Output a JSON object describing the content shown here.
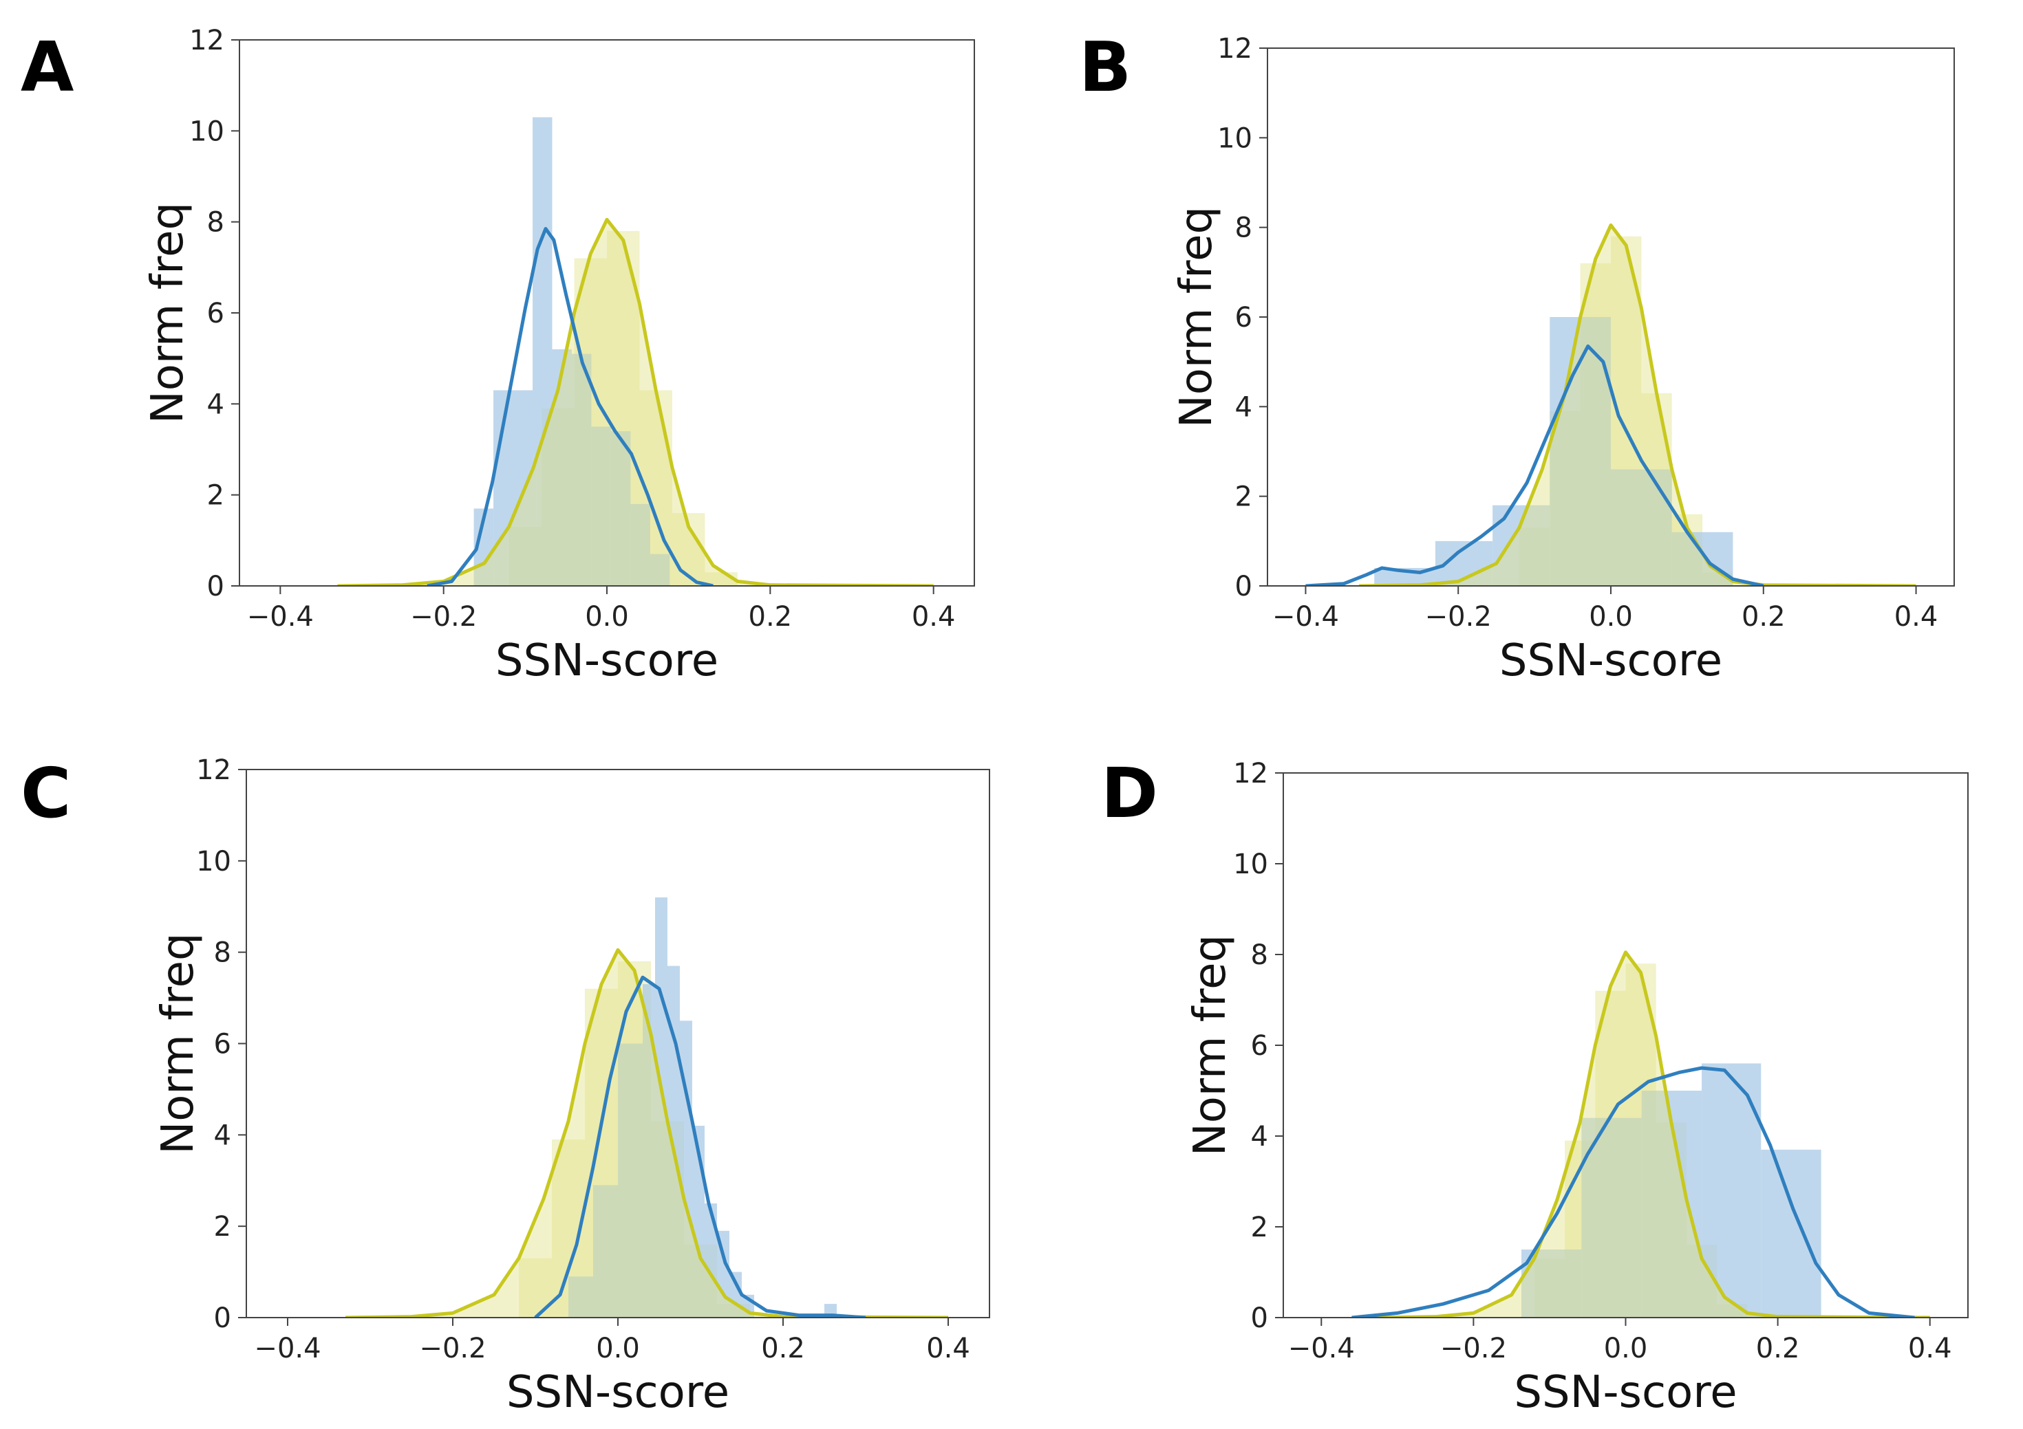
{
  "chart_data": [
    {
      "panel": "A",
      "type": "histogram+kde",
      "xlabel": "SSN-score",
      "ylabel": "Norm freq",
      "xlim": [
        -0.45,
        0.45
      ],
      "ylim": [
        0,
        12
      ],
      "xticks": [
        "−0.4",
        "−0.2",
        "0.0",
        "0.2",
        "0.4"
      ],
      "yticks": [
        "0",
        "2",
        "4",
        "6",
        "8",
        "10",
        "12"
      ],
      "grid": false,
      "colors": {
        "background": "#e3e38a",
        "sample": "#2b7bba"
      },
      "series": [
        {
          "kde": [
            [
              -0.33,
              0
            ],
            [
              -0.25,
              0.02
            ],
            [
              -0.2,
              0.1
            ],
            [
              -0.15,
              0.5
            ],
            [
              -0.12,
              1.3
            ],
            [
              -0.09,
              2.6
            ],
            [
              -0.06,
              4.3
            ],
            [
              -0.04,
              6.0
            ],
            [
              -0.02,
              7.3
            ],
            [
              0.0,
              8.05
            ],
            [
              0.02,
              7.6
            ],
            [
              0.04,
              6.2
            ],
            [
              0.06,
              4.3
            ],
            [
              0.08,
              2.6
            ],
            [
              0.1,
              1.3
            ],
            [
              0.13,
              0.45
            ],
            [
              0.16,
              0.1
            ],
            [
              0.2,
              0.02
            ],
            [
              0.4,
              0
            ]
          ],
          "hist": [
            [
              -0.12,
              -0.08,
              1.3
            ],
            [
              -0.08,
              -0.04,
              3.9
            ],
            [
              -0.04,
              0.0,
              7.2
            ],
            [
              0.0,
              0.04,
              7.8
            ],
            [
              0.04,
              0.08,
              4.3
            ],
            [
              0.08,
              0.12,
              1.6
            ],
            [
              0.12,
              0.16,
              0.3
            ]
          ]
        },
        {
          "kde": [
            [
              -0.22,
              0
            ],
            [
              -0.19,
              0.1
            ],
            [
              -0.16,
              0.8
            ],
            [
              -0.14,
              2.3
            ],
            [
              -0.12,
              4.2
            ],
            [
              -0.1,
              6.1
            ],
            [
              -0.085,
              7.4
            ],
            [
              -0.075,
              7.85
            ],
            [
              -0.065,
              7.6
            ],
            [
              -0.05,
              6.4
            ],
            [
              -0.03,
              4.9
            ],
            [
              -0.01,
              4.0
            ],
            [
              0.01,
              3.4
            ],
            [
              0.03,
              2.9
            ],
            [
              0.05,
              2.0
            ],
            [
              0.07,
              1.0
            ],
            [
              0.09,
              0.35
            ],
            [
              0.11,
              0.08
            ],
            [
              0.13,
              0
            ]
          ],
          "hist": [
            [
              -0.163,
              -0.139,
              1.7
            ],
            [
              -0.139,
              -0.115,
              4.3
            ],
            [
              -0.115,
              -0.091,
              4.3
            ],
            [
              -0.091,
              -0.067,
              10.3
            ],
            [
              -0.067,
              -0.043,
              5.2
            ],
            [
              -0.043,
              -0.019,
              5.1
            ],
            [
              -0.019,
              0.005,
              3.5
            ],
            [
              0.005,
              0.029,
              3.4
            ],
            [
              0.029,
              0.053,
              1.8
            ],
            [
              0.053,
              0.077,
              0.7
            ]
          ]
        }
      ]
    },
    {
      "panel": "B",
      "type": "histogram+kde",
      "xlabel": "SSN-score",
      "ylabel": "Norm freq",
      "xlim": [
        -0.45,
        0.45
      ],
      "ylim": [
        0,
        12
      ],
      "xticks": [
        "−0.4",
        "−0.2",
        "0.0",
        "0.2",
        "0.4"
      ],
      "yticks": [
        "0",
        "2",
        "4",
        "6",
        "8",
        "10",
        "12"
      ],
      "grid": false,
      "colors": {
        "background": "#e3e38a",
        "sample": "#2b7bba"
      },
      "series": [
        {
          "kde": [
            [
              -0.33,
              0
            ],
            [
              -0.25,
              0.02
            ],
            [
              -0.2,
              0.1
            ],
            [
              -0.15,
              0.5
            ],
            [
              -0.12,
              1.3
            ],
            [
              -0.09,
              2.6
            ],
            [
              -0.06,
              4.3
            ],
            [
              -0.04,
              6.0
            ],
            [
              -0.02,
              7.3
            ],
            [
              0.0,
              8.05
            ],
            [
              0.02,
              7.6
            ],
            [
              0.04,
              6.2
            ],
            [
              0.06,
              4.3
            ],
            [
              0.08,
              2.6
            ],
            [
              0.1,
              1.3
            ],
            [
              0.13,
              0.45
            ],
            [
              0.16,
              0.1
            ],
            [
              0.2,
              0.02
            ],
            [
              0.4,
              0
            ]
          ],
          "hist": [
            [
              -0.12,
              -0.08,
              1.3
            ],
            [
              -0.08,
              -0.04,
              3.9
            ],
            [
              -0.04,
              0.0,
              7.2
            ],
            [
              0.0,
              0.04,
              7.8
            ],
            [
              0.04,
              0.08,
              4.3
            ],
            [
              0.08,
              0.12,
              1.6
            ],
            [
              0.12,
              0.16,
              0.3
            ]
          ]
        },
        {
          "kde": [
            [
              -0.4,
              0
            ],
            [
              -0.35,
              0.05
            ],
            [
              -0.32,
              0.25
            ],
            [
              -0.3,
              0.4
            ],
            [
              -0.28,
              0.35
            ],
            [
              -0.25,
              0.3
            ],
            [
              -0.22,
              0.45
            ],
            [
              -0.2,
              0.75
            ],
            [
              -0.17,
              1.1
            ],
            [
              -0.14,
              1.5
            ],
            [
              -0.11,
              2.3
            ],
            [
              -0.08,
              3.5
            ],
            [
              -0.05,
              4.7
            ],
            [
              -0.03,
              5.35
            ],
            [
              -0.01,
              5.0
            ],
            [
              0.01,
              3.8
            ],
            [
              0.04,
              2.8
            ],
            [
              0.07,
              2.0
            ],
            [
              0.1,
              1.2
            ],
            [
              0.13,
              0.5
            ],
            [
              0.16,
              0.15
            ],
            [
              0.2,
              0
            ]
          ],
          "hist": [
            [
              -0.31,
              -0.23,
              0.4
            ],
            [
              -0.23,
              -0.155,
              1.0
            ],
            [
              -0.155,
              -0.08,
              1.8
            ],
            [
              -0.08,
              0.0,
              6.0
            ],
            [
              0.0,
              0.08,
              2.6
            ],
            [
              0.08,
              0.16,
              1.2
            ]
          ]
        }
      ]
    },
    {
      "panel": "C",
      "type": "histogram+kde",
      "xlabel": "SSN-score",
      "ylabel": "Norm freq",
      "xlim": [
        -0.45,
        0.45
      ],
      "ylim": [
        0,
        12
      ],
      "xticks": [
        "−0.4",
        "−0.2",
        "0.0",
        "0.2",
        "0.4"
      ],
      "yticks": [
        "0",
        "2",
        "4",
        "6",
        "8",
        "10",
        "12"
      ],
      "grid": false,
      "colors": {
        "background": "#e3e38a",
        "sample": "#2b7bba"
      },
      "series": [
        {
          "kde": [
            [
              -0.33,
              0
            ],
            [
              -0.25,
              0.02
            ],
            [
              -0.2,
              0.1
            ],
            [
              -0.15,
              0.5
            ],
            [
              -0.12,
              1.3
            ],
            [
              -0.09,
              2.6
            ],
            [
              -0.06,
              4.3
            ],
            [
              -0.04,
              6.0
            ],
            [
              -0.02,
              7.3
            ],
            [
              0.0,
              8.05
            ],
            [
              0.02,
              7.6
            ],
            [
              0.04,
              6.2
            ],
            [
              0.06,
              4.3
            ],
            [
              0.08,
              2.6
            ],
            [
              0.1,
              1.3
            ],
            [
              0.13,
              0.45
            ],
            [
              0.16,
              0.1
            ],
            [
              0.2,
              0.02
            ],
            [
              0.4,
              0
            ]
          ],
          "hist": [
            [
              -0.12,
              -0.08,
              1.3
            ],
            [
              -0.08,
              -0.04,
              3.9
            ],
            [
              -0.04,
              0.0,
              7.2
            ],
            [
              0.0,
              0.04,
              7.8
            ],
            [
              0.04,
              0.08,
              4.3
            ],
            [
              0.08,
              0.12,
              1.6
            ],
            [
              0.12,
              0.16,
              0.3
            ]
          ]
        },
        {
          "kde": [
            [
              -0.1,
              0
            ],
            [
              -0.07,
              0.5
            ],
            [
              -0.05,
              1.6
            ],
            [
              -0.03,
              3.3
            ],
            [
              -0.01,
              5.2
            ],
            [
              0.01,
              6.7
            ],
            [
              0.03,
              7.45
            ],
            [
              0.05,
              7.2
            ],
            [
              0.07,
              6.0
            ],
            [
              0.09,
              4.3
            ],
            [
              0.11,
              2.5
            ],
            [
              0.13,
              1.2
            ],
            [
              0.15,
              0.5
            ],
            [
              0.18,
              0.15
            ],
            [
              0.22,
              0.05
            ],
            [
              0.26,
              0.05
            ],
            [
              0.3,
              0
            ]
          ],
          "hist": [
            [
              -0.06,
              -0.03,
              0.9
            ],
            [
              -0.03,
              0.0,
              2.9
            ],
            [
              0.0,
              0.03,
              6.0
            ],
            [
              0.03,
              0.045,
              7.3
            ],
            [
              0.045,
              0.06,
              9.2
            ],
            [
              0.06,
              0.075,
              7.7
            ],
            [
              0.075,
              0.09,
              6.5
            ],
            [
              0.09,
              0.105,
              4.2
            ],
            [
              0.105,
              0.12,
              2.5
            ],
            [
              0.12,
              0.135,
              1.9
            ],
            [
              0.135,
              0.15,
              1.0
            ],
            [
              0.15,
              0.165,
              0.5
            ],
            [
              0.25,
              0.265,
              0.3
            ]
          ]
        }
      ]
    },
    {
      "panel": "D",
      "type": "histogram+kde",
      "xlabel": "SSN-score",
      "ylabel": "Norm freq",
      "xlim": [
        -0.45,
        0.45
      ],
      "ylim": [
        0,
        12
      ],
      "xticks": [
        "−0.4",
        "−0.2",
        "0.0",
        "0.2",
        "0.4"
      ],
      "yticks": [
        "0",
        "2",
        "4",
        "6",
        "8",
        "10",
        "12"
      ],
      "grid": false,
      "colors": {
        "background": "#e3e38a",
        "sample": "#2b7bba"
      },
      "series": [
        {
          "kde": [
            [
              -0.33,
              0
            ],
            [
              -0.25,
              0.02
            ],
            [
              -0.2,
              0.1
            ],
            [
              -0.15,
              0.5
            ],
            [
              -0.12,
              1.3
            ],
            [
              -0.09,
              2.6
            ],
            [
              -0.06,
              4.3
            ],
            [
              -0.04,
              6.0
            ],
            [
              -0.02,
              7.3
            ],
            [
              0.0,
              8.05
            ],
            [
              0.02,
              7.6
            ],
            [
              0.04,
              6.2
            ],
            [
              0.06,
              4.3
            ],
            [
              0.08,
              2.6
            ],
            [
              0.1,
              1.3
            ],
            [
              0.13,
              0.45
            ],
            [
              0.16,
              0.1
            ],
            [
              0.2,
              0.02
            ],
            [
              0.4,
              0
            ]
          ],
          "hist": [
            [
              -0.12,
              -0.08,
              1.3
            ],
            [
              -0.08,
              -0.04,
              3.9
            ],
            [
              -0.04,
              0.0,
              7.2
            ],
            [
              0.0,
              0.04,
              7.8
            ],
            [
              0.04,
              0.08,
              4.3
            ],
            [
              0.08,
              0.12,
              1.6
            ],
            [
              0.12,
              0.16,
              0.3
            ]
          ]
        },
        {
          "kde": [
            [
              -0.36,
              0
            ],
            [
              -0.3,
              0.1
            ],
            [
              -0.24,
              0.3
            ],
            [
              -0.18,
              0.6
            ],
            [
              -0.13,
              1.2
            ],
            [
              -0.09,
              2.3
            ],
            [
              -0.05,
              3.6
            ],
            [
              -0.01,
              4.7
            ],
            [
              0.03,
              5.2
            ],
            [
              0.07,
              5.4
            ],
            [
              0.1,
              5.5
            ],
            [
              0.13,
              5.45
            ],
            [
              0.16,
              4.9
            ],
            [
              0.19,
              3.8
            ],
            [
              0.22,
              2.4
            ],
            [
              0.25,
              1.2
            ],
            [
              0.28,
              0.5
            ],
            [
              0.32,
              0.1
            ],
            [
              0.38,
              0
            ]
          ],
          "hist": [
            [
              -0.137,
              -0.058,
              1.5
            ],
            [
              -0.058,
              0.021,
              4.4
            ],
            [
              0.021,
              0.1,
              5.0
            ],
            [
              0.1,
              0.178,
              5.6
            ],
            [
              0.178,
              0.257,
              3.7
            ]
          ]
        }
      ]
    }
  ]
}
